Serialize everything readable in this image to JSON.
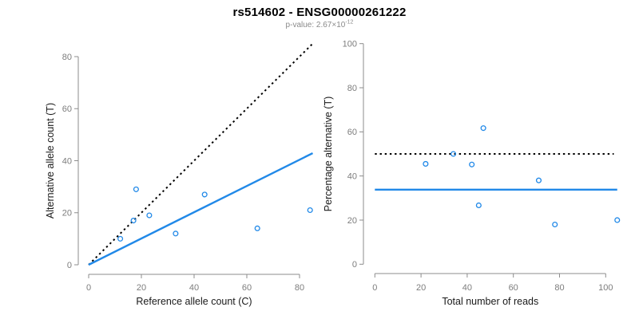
{
  "header": {
    "title": "rs514602 - ENSG00000261222",
    "subtitle": {
      "base": "p-value: 2.67×10",
      "exponent": "-12"
    }
  },
  "colors": {
    "point_line_blue": "#2189E8",
    "reference_line_black": "#000000",
    "axis_gray": "#8c8c8c",
    "tick_label_gray": "#7d7d7d",
    "label_black": "#1a1a1a",
    "subtitle_gray": "#8a8a8a"
  },
  "chart_data": [
    {
      "type": "scatter",
      "panel": "allele-counts",
      "xlabel": "Reference allele count (C)",
      "ylabel": "Alternative allele count (T)",
      "xlim": [
        0,
        85
      ],
      "ylim": [
        0,
        85
      ],
      "xticks": [
        0,
        20,
        40,
        60,
        80
      ],
      "yticks": [
        0,
        20,
        40,
        60,
        80
      ],
      "grid": false,
      "marker": "open-circle",
      "points": [
        [
          12,
          10
        ],
        [
          17,
          17
        ],
        [
          18,
          29
        ],
        [
          23,
          19
        ],
        [
          33,
          12
        ],
        [
          44,
          27
        ],
        [
          64,
          14
        ],
        [
          84,
          21
        ]
      ],
      "lines": [
        {
          "name": "identity",
          "style": "dashed",
          "color": "#000000",
          "x1": 0,
          "y1": 0,
          "x2": 85,
          "y2": 85
        },
        {
          "name": "fit",
          "style": "solid",
          "color": "#2189E8",
          "x1": 0,
          "y1": 0,
          "x2": 85,
          "y2": 42.9
        }
      ]
    },
    {
      "type": "scatter",
      "panel": "percentage-alternative",
      "xlabel": "Total number of reads",
      "ylabel": "Percentage alternative (T)",
      "xlim": [
        0,
        105
      ],
      "ylim": [
        0,
        100
      ],
      "xticks": [
        0,
        20,
        40,
        60,
        80,
        100
      ],
      "yticks": [
        0,
        20,
        40,
        60,
        80,
        100
      ],
      "grid": false,
      "marker": "open-circle",
      "points": [
        [
          22,
          45.5
        ],
        [
          34,
          50
        ],
        [
          42,
          45.2
        ],
        [
          45,
          26.7
        ],
        [
          47,
          61.7
        ],
        [
          71,
          38
        ],
        [
          78,
          18
        ],
        [
          105,
          20
        ]
      ],
      "lines": [
        {
          "name": "fifty-percent",
          "style": "dashed",
          "color": "#000000",
          "x1": 0,
          "y1": 50,
          "x2": 103.5,
          "y2": 50
        },
        {
          "name": "mean-percentage",
          "style": "solid",
          "color": "#2189E8",
          "x1": 0,
          "y1": 33.8,
          "x2": 105,
          "y2": 33.8
        }
      ]
    }
  ]
}
